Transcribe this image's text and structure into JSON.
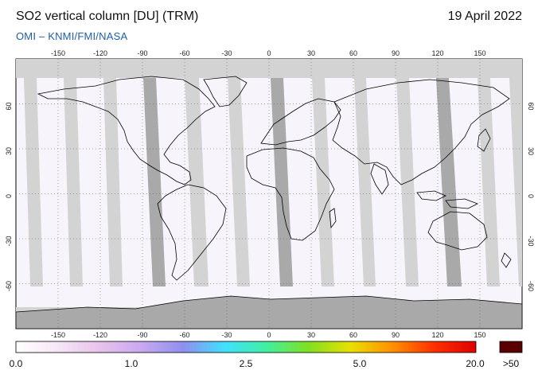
{
  "header": {
    "title": "SO2 vertical column [DU] (TRM)",
    "date": "19 April 2022",
    "subtitle": "OMI  –  KNMI/FMI/NASA"
  },
  "map": {
    "projection": "equirectangular",
    "lon_range": [
      -180,
      180
    ],
    "lat_range": [
      -90,
      90
    ],
    "grid": "dotted",
    "lon_ticks": [
      -150,
      -120,
      -90,
      -60,
      -30,
      0,
      30,
      60,
      90,
      120,
      150
    ],
    "lat_ticks": [
      60,
      30,
      0,
      -30,
      -60
    ],
    "colors": {
      "ocean_data": "#f7f5fb",
      "no_data_gap": "#d3d3d3",
      "swath_overlap": "#a9a9a9",
      "coastline": "#000000"
    }
  },
  "colorbar": {
    "labels": [
      "0.0",
      "1.0",
      "2.5",
      "5.0",
      "20.0"
    ],
    "overflow_label": ">50",
    "overflow_color": "#5a0000",
    "gradient": [
      "#ffffff",
      "#f6e6f6",
      "#e8c2ec",
      "#c8a8f0",
      "#8f8ff0",
      "#40e0ff",
      "#40f0a0",
      "#80e020",
      "#e8e000",
      "#ff9000",
      "#ff3000",
      "#e00000"
    ]
  }
}
